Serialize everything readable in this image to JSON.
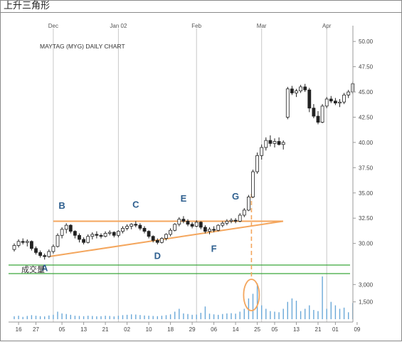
{
  "window": {
    "title": "上升三角形"
  },
  "chart_data": {
    "type": "candlestick",
    "title": "MAYTAG (MYG) DAILY CHART",
    "price_axis": {
      "ylim": [
        28.0,
        51.0
      ],
      "ticks": [
        "50.00",
        "47.50",
        "45.00",
        "42.50",
        "40.00",
        "37.50",
        "35.00",
        "32.50",
        "30.00"
      ],
      "position": "right"
    },
    "volume_axis": {
      "label": "成交量",
      "ticks": [
        "3,000",
        "1,500"
      ],
      "ylim": [
        0,
        3700
      ]
    },
    "month_labels": [
      {
        "label": "Dec",
        "index": 9
      },
      {
        "label": "Jan 02",
        "index": 24
      },
      {
        "label": "Feb",
        "index": 42
      },
      {
        "label": "Mar",
        "index": 57
      },
      {
        "label": "Apr",
        "index": 72
      }
    ],
    "date_labels": [
      {
        "label": "16",
        "index": 1
      },
      {
        "label": "27",
        "index": 5
      },
      {
        "label": "05",
        "index": 11
      },
      {
        "label": "13",
        "index": 16
      },
      {
        "label": "21",
        "index": 21
      },
      {
        "label": "02",
        "index": 26
      },
      {
        "label": "10",
        "index": 31
      },
      {
        "label": "18",
        "index": 36
      },
      {
        "label": "29",
        "index": 41
      },
      {
        "label": "06",
        "index": 46
      },
      {
        "label": "14",
        "index": 51
      },
      {
        "label": "25",
        "index": 56
      },
      {
        "label": "05",
        "index": 60
      },
      {
        "label": "13",
        "index": 65
      },
      {
        "label": "21",
        "index": 70
      },
      {
        "label": "01",
        "index": 74
      },
      {
        "label": "09",
        "index": 79
      }
    ],
    "ohlc": [
      [
        29.4,
        30.0,
        29.2,
        29.8
      ],
      [
        29.8,
        30.4,
        29.6,
        30.2
      ],
      [
        30.2,
        30.5,
        29.9,
        30.1
      ],
      [
        30.1,
        30.4,
        29.7,
        30.2
      ],
      [
        30.2,
        30.3,
        29.3,
        29.5
      ],
      [
        29.5,
        29.7,
        28.9,
        29.1
      ],
      [
        29.1,
        29.3,
        28.6,
        28.8
      ],
      [
        28.8,
        29.0,
        28.4,
        28.7
      ],
      [
        28.7,
        29.4,
        28.6,
        29.2
      ],
      [
        29.2,
        29.9,
        29.0,
        29.7
      ],
      [
        29.7,
        31.0,
        29.6,
        30.8
      ],
      [
        30.8,
        31.6,
        30.5,
        31.4
      ],
      [
        31.4,
        32.0,
        31.0,
        31.8
      ],
      [
        31.8,
        31.9,
        31.0,
        31.2
      ],
      [
        31.2,
        31.3,
        30.5,
        30.8
      ],
      [
        30.8,
        31.0,
        30.1,
        30.4
      ],
      [
        30.4,
        30.6,
        29.9,
        30.1
      ],
      [
        30.1,
        30.9,
        30.0,
        30.7
      ],
      [
        30.7,
        31.1,
        30.4,
        30.9
      ],
      [
        30.9,
        31.2,
        30.5,
        30.8
      ],
      [
        30.8,
        31.0,
        30.5,
        30.7
      ],
      [
        30.7,
        31.2,
        30.6,
        31.0
      ],
      [
        31.0,
        31.3,
        30.8,
        31.1
      ],
      [
        31.1,
        31.2,
        30.6,
        30.8
      ],
      [
        30.8,
        31.3,
        30.6,
        31.2
      ],
      [
        31.2,
        31.7,
        31.0,
        31.5
      ],
      [
        31.5,
        31.9,
        31.3,
        31.7
      ],
      [
        31.7,
        32.0,
        31.4,
        31.9
      ],
      [
        31.9,
        32.2,
        31.6,
        31.8
      ],
      [
        31.8,
        32.0,
        31.3,
        31.5
      ],
      [
        31.5,
        31.7,
        31.0,
        31.2
      ],
      [
        31.2,
        31.3,
        30.5,
        30.7
      ],
      [
        30.7,
        30.8,
        30.1,
        30.3
      ],
      [
        30.3,
        30.5,
        29.9,
        30.1
      ],
      [
        30.1,
        30.6,
        30.0,
        30.5
      ],
      [
        30.5,
        31.0,
        30.3,
        30.9
      ],
      [
        30.9,
        31.5,
        30.7,
        31.3
      ],
      [
        31.3,
        32.0,
        31.2,
        31.9
      ],
      [
        31.9,
        32.6,
        31.7,
        32.4
      ],
      [
        32.4,
        32.7,
        32.0,
        32.2
      ],
      [
        32.2,
        32.4,
        31.7,
        31.9
      ],
      [
        31.9,
        32.1,
        31.5,
        31.7
      ],
      [
        31.7,
        32.3,
        31.6,
        32.1
      ],
      [
        32.1,
        32.2,
        31.4,
        31.6
      ],
      [
        31.6,
        31.8,
        31.0,
        31.2
      ],
      [
        31.2,
        31.6,
        30.9,
        31.4
      ],
      [
        31.4,
        31.7,
        31.1,
        31.3
      ],
      [
        31.3,
        31.9,
        31.2,
        31.8
      ],
      [
        31.8,
        32.2,
        31.6,
        32.0
      ],
      [
        32.0,
        32.4,
        31.8,
        32.2
      ],
      [
        32.2,
        32.5,
        32.0,
        32.3
      ],
      [
        32.3,
        32.5,
        32.0,
        32.2
      ],
      [
        32.2,
        33.0,
        32.1,
        32.8
      ],
      [
        32.8,
        33.5,
        32.6,
        33.3
      ],
      [
        33.3,
        34.8,
        33.2,
        34.6
      ],
      [
        34.6,
        37.3,
        34.5,
        37.1
      ],
      [
        37.1,
        39.0,
        36.9,
        38.7
      ],
      [
        38.7,
        39.8,
        38.3,
        39.5
      ],
      [
        39.5,
        40.5,
        39.2,
        40.2
      ],
      [
        40.2,
        40.7,
        39.6,
        39.9
      ],
      [
        39.9,
        40.4,
        39.5,
        40.1
      ],
      [
        40.1,
        40.5,
        39.7,
        39.8
      ],
      [
        39.8,
        40.2,
        39.3,
        40.0
      ],
      [
        42.5,
        45.5,
        42.3,
        45.3
      ],
      [
        45.3,
        45.6,
        44.7,
        44.9
      ],
      [
        44.9,
        45.3,
        44.5,
        45.1
      ],
      [
        45.1,
        45.7,
        44.9,
        45.5
      ],
      [
        45.5,
        45.8,
        45.0,
        45.2
      ],
      [
        45.2,
        45.4,
        43.0,
        43.4
      ],
      [
        43.4,
        43.8,
        42.4,
        42.6
      ],
      [
        42.6,
        43.1,
        41.8,
        42.0
      ],
      [
        42.0,
        43.8,
        41.9,
        43.6
      ],
      [
        43.6,
        44.5,
        43.4,
        44.3
      ],
      [
        44.3,
        44.6,
        43.9,
        44.1
      ],
      [
        44.1,
        44.4,
        43.7,
        43.9
      ],
      [
        43.9,
        44.3,
        43.5,
        44.0
      ],
      [
        44.0,
        44.9,
        43.8,
        44.7
      ],
      [
        44.7,
        45.2,
        44.4,
        45.0
      ],
      [
        45.0,
        46.0,
        44.8,
        45.8
      ]
    ],
    "volume": [
      250,
      300,
      200,
      280,
      350,
      300,
      260,
      240,
      320,
      380,
      650,
      500,
      450,
      380,
      300,
      280,
      260,
      300,
      280,
      250,
      260,
      300,
      280,
      240,
      300,
      350,
      380,
      420,
      400,
      360,
      320,
      300,
      280,
      260,
      300,
      350,
      420,
      650,
      900,
      500,
      450,
      380,
      400,
      550,
      1100,
      480,
      420,
      380,
      450,
      500,
      520,
      480,
      650,
      900,
      1800,
      2200,
      3100,
      1200,
      900,
      700,
      650,
      600,
      900,
      1500,
      1800,
      1600,
      700,
      900,
      1200,
      800,
      700,
      3700,
      900,
      1500,
      1200,
      900,
      1000,
      600,
      1400
    ],
    "annotations": [
      {
        "label": "A",
        "index": 7,
        "price": 28.1,
        "side": "below"
      },
      {
        "label": "B",
        "index": 11,
        "price": 33.3,
        "side": "above"
      },
      {
        "label": "C",
        "index": 28,
        "price": 33.4,
        "side": "above"
      },
      {
        "label": "D",
        "index": 33,
        "price": 29.3,
        "side": "below"
      },
      {
        "label": "E",
        "index": 39,
        "price": 34.0,
        "side": "above"
      },
      {
        "label": "F",
        "index": 46,
        "price": 30.0,
        "side": "below"
      },
      {
        "label": "G",
        "index": 51,
        "price": 34.2,
        "side": "above"
      }
    ],
    "resistance_line": {
      "price": 32.2,
      "from_index": 9,
      "to_index": 60
    },
    "support_line": {
      "from": {
        "index": 8,
        "price": 28.7
      },
      "to": {
        "index": 60,
        "price": 32.2
      }
    },
    "breakout_index": 54,
    "volume_highlight_index": 54,
    "colors": {
      "orange": "#f4a65d",
      "green": "#3aa63a",
      "grid": "#c8c8c8",
      "candle": "#222222",
      "volume": "#6aa8d8",
      "label": "#2e5f8f"
    }
  }
}
